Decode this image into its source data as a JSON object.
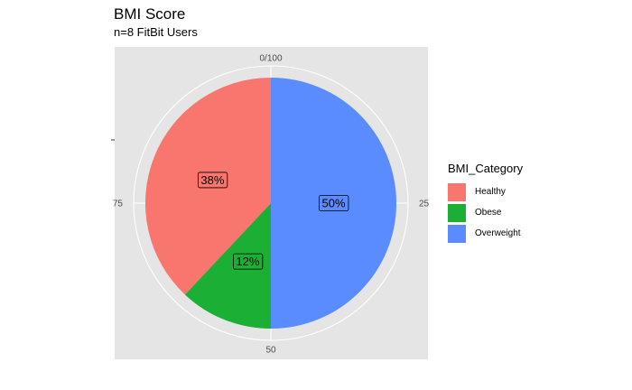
{
  "colors": {
    "Healthy": "#F8766D",
    "Obese": "#1BAF35",
    "Overweight": "#5A8CFF",
    "panel_bg": "#E5E5E5",
    "grid": "#FFFFFF"
  },
  "chart_data": {
    "type": "pie",
    "title": "BMI Score",
    "subtitle": "n=8 FitBit Users",
    "theta_ticks": [
      {
        "value": 0,
        "label": "0/100"
      },
      {
        "value": 25,
        "label": "25"
      },
      {
        "value": 50,
        "label": "50"
      },
      {
        "value": 75,
        "label": "75"
      }
    ],
    "slices": [
      {
        "category": "Overweight",
        "value": 50,
        "label": "50%"
      },
      {
        "category": "Obese",
        "value": 12,
        "label": "12%"
      },
      {
        "category": "Healthy",
        "value": 38,
        "label": "38%"
      }
    ],
    "legend": {
      "title": "BMI_Category",
      "position": "right",
      "entries": [
        "Healthy",
        "Obese",
        "Overweight"
      ]
    }
  }
}
